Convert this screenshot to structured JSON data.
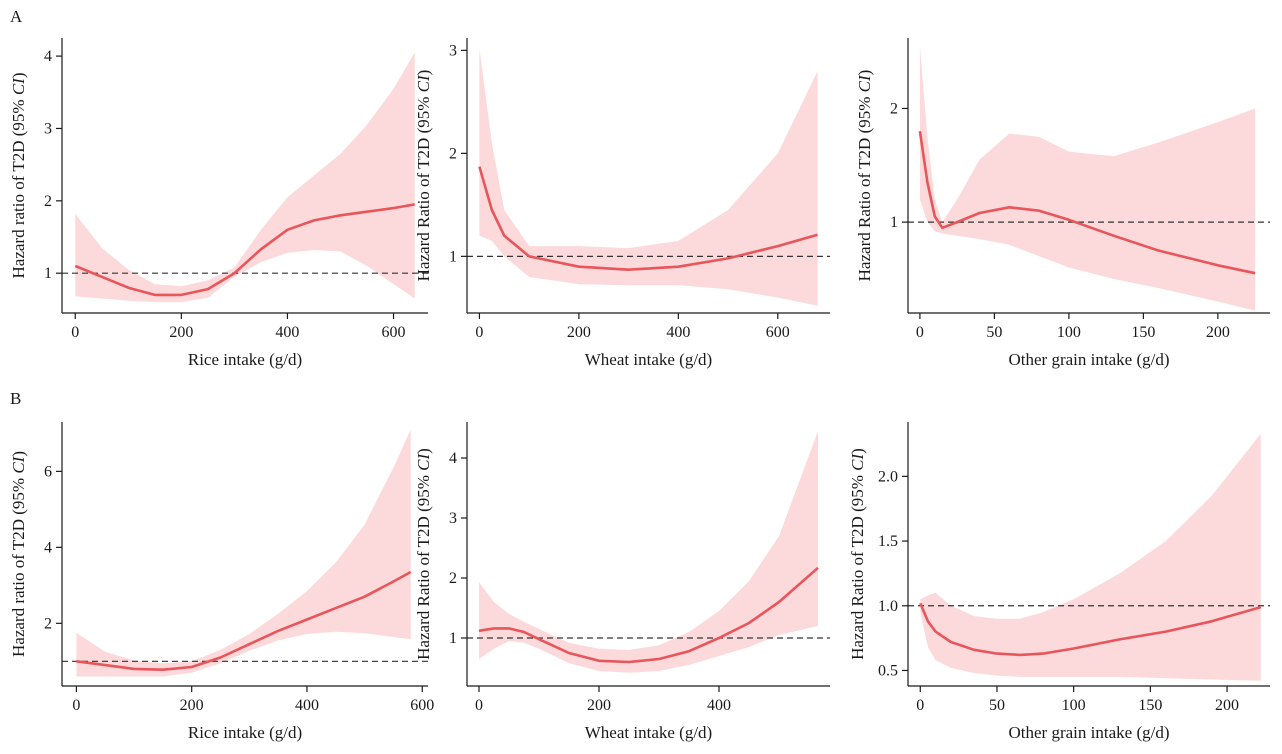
{
  "panel_labels": [
    "A",
    "B"
  ],
  "style": {
    "curve_color": "#e8555a",
    "band_color": "#fcdadb",
    "ref_line_color": "#333333"
  },
  "chart_data": [
    {
      "type": "line",
      "row": "A",
      "xlabel": "Rice intake (g/d)",
      "ylabel": "Hazard ratio of T2D (95%",
      "ylabel_italic": "CI",
      "ylabel_close": ")",
      "xlim": [
        -25,
        665
      ],
      "ylim": [
        0.45,
        4.25
      ],
      "xticks": [
        0,
        200,
        400,
        600
      ],
      "yticks": [
        1,
        2,
        3,
        4
      ],
      "reference_line": 1,
      "x": [
        0,
        50,
        100,
        150,
        200,
        250,
        300,
        350,
        400,
        450,
        500,
        550,
        600,
        640
      ],
      "y": [
        1.1,
        0.95,
        0.8,
        0.7,
        0.7,
        0.78,
        1.0,
        1.33,
        1.6,
        1.73,
        1.8,
        1.85,
        1.9,
        1.95
      ],
      "lower": [
        0.68,
        0.65,
        0.62,
        0.6,
        0.6,
        0.66,
        0.95,
        1.15,
        1.28,
        1.32,
        1.3,
        1.1,
        0.85,
        0.65
      ],
      "upper": [
        1.82,
        1.35,
        1.05,
        0.85,
        0.82,
        0.9,
        1.08,
        1.6,
        2.05,
        2.35,
        2.65,
        3.05,
        3.55,
        4.05
      ]
    },
    {
      "type": "line",
      "row": "A",
      "xlabel": "Wheat intake (g/d)",
      "ylabel": "Hazard Ratio of T2D (95%",
      "ylabel_italic": "CI",
      "ylabel_close": ")",
      "xlim": [
        -25,
        705
      ],
      "ylim": [
        0.45,
        3.12
      ],
      "xticks": [
        0,
        200,
        400,
        600
      ],
      "yticks": [
        1,
        2,
        3
      ],
      "reference_line": 1,
      "x": [
        0,
        25,
        50,
        100,
        200,
        300,
        400,
        500,
        600,
        680
      ],
      "y": [
        1.87,
        1.45,
        1.2,
        1.0,
        0.9,
        0.87,
        0.9,
        0.98,
        1.1,
        1.21
      ],
      "lower": [
        1.2,
        1.15,
        1.0,
        0.8,
        0.73,
        0.72,
        0.72,
        0.68,
        0.6,
        0.52
      ],
      "upper": [
        3.02,
        2.1,
        1.45,
        1.1,
        1.1,
        1.08,
        1.15,
        1.45,
        2.0,
        2.8
      ]
    },
    {
      "type": "line",
      "row": "A",
      "xlabel": "Other grain intake (g/d)",
      "ylabel": "Hazard Ratio of T2D (95%",
      "ylabel_italic": "CI",
      "ylabel_close": ")",
      "xlim": [
        -8,
        235
      ],
      "ylim": [
        0.2,
        2.62
      ],
      "xticks": [
        0,
        50,
        100,
        150,
        200
      ],
      "yticks": [
        1,
        2
      ],
      "reference_line": 1,
      "x": [
        0,
        5,
        10,
        15,
        25,
        40,
        60,
        80,
        100,
        130,
        160,
        200,
        225
      ],
      "y": [
        1.8,
        1.35,
        1.05,
        0.95,
        1.0,
        1.08,
        1.13,
        1.1,
        1.02,
        0.88,
        0.75,
        0.62,
        0.55
      ],
      "lower": [
        1.2,
        1.0,
        0.92,
        0.9,
        0.88,
        0.85,
        0.8,
        0.7,
        0.6,
        0.5,
        0.42,
        0.3,
        0.22
      ],
      "upper": [
        2.55,
        1.75,
        1.2,
        1.0,
        1.2,
        1.55,
        1.78,
        1.75,
        1.62,
        1.58,
        1.7,
        1.88,
        2.0
      ]
    },
    {
      "type": "line",
      "row": "B",
      "xlabel": "Rice intake (g/d)",
      "ylabel": "Hazard ratio of T2D (95%",
      "ylabel_italic": "CI",
      "ylabel_close": ")",
      "xlim": [
        -25,
        610
      ],
      "ylim": [
        0.35,
        7.3
      ],
      "xticks": [
        0,
        200,
        400,
        600
      ],
      "yticks": [
        2,
        4,
        6
      ],
      "reference_line": 1,
      "x": [
        0,
        50,
        100,
        150,
        200,
        250,
        300,
        350,
        400,
        450,
        500,
        550,
        580
      ],
      "y": [
        1.0,
        0.9,
        0.8,
        0.78,
        0.85,
        1.1,
        1.45,
        1.8,
        2.1,
        2.4,
        2.7,
        3.1,
        3.35
      ],
      "lower": [
        0.6,
        0.6,
        0.6,
        0.6,
        0.7,
        0.95,
        1.28,
        1.55,
        1.72,
        1.78,
        1.74,
        1.64,
        1.58
      ],
      "upper": [
        1.75,
        1.25,
        1.02,
        0.95,
        1.0,
        1.3,
        1.72,
        2.25,
        2.85,
        3.6,
        4.6,
        6.1,
        7.1
      ]
    },
    {
      "type": "line",
      "row": "B",
      "xlabel": "Wheat intake (g/d)",
      "ylabel": "Hazard Ratio of T2D (95%",
      "ylabel_italic": "CI",
      "ylabel_close": ")",
      "xlim": [
        -20,
        585
      ],
      "ylim": [
        0.2,
        4.6
      ],
      "xticks": [
        0,
        200,
        400
      ],
      "yticks": [
        1,
        2,
        3,
        4
      ],
      "reference_line": 1,
      "x": [
        0,
        25,
        50,
        75,
        100,
        150,
        200,
        250,
        300,
        350,
        400,
        450,
        500,
        565
      ],
      "y": [
        1.12,
        1.16,
        1.16,
        1.1,
        0.98,
        0.75,
        0.62,
        0.6,
        0.65,
        0.78,
        1.0,
        1.25,
        1.6,
        2.17
      ],
      "lower": [
        0.65,
        0.82,
        0.95,
        0.92,
        0.82,
        0.58,
        0.45,
        0.42,
        0.45,
        0.55,
        0.7,
        0.85,
        1.05,
        1.2
      ],
      "upper": [
        1.93,
        1.6,
        1.4,
        1.27,
        1.15,
        0.92,
        0.82,
        0.8,
        0.88,
        1.1,
        1.45,
        1.95,
        2.7,
        4.45
      ]
    },
    {
      "type": "line",
      "row": "B",
      "xlabel": "Other grain intake (g/d)",
      "ylabel": "Hazard Ratio of T2D (95%",
      "ylabel_italic": "CI",
      "ylabel_close": ")",
      "xlim": [
        -8,
        228
      ],
      "ylim": [
        0.38,
        2.42
      ],
      "xticks": [
        0,
        50,
        100,
        150,
        200
      ],
      "yticks": [
        0.5,
        1.0,
        1.5,
        2.0
      ],
      "ytick_labels": [
        "0.5",
        "1.0",
        "1.5",
        "2.0"
      ],
      "reference_line": 1,
      "x": [
        0,
        5,
        10,
        20,
        35,
        50,
        65,
        80,
        100,
        130,
        160,
        190,
        222
      ],
      "y": [
        1.02,
        0.88,
        0.8,
        0.72,
        0.66,
        0.63,
        0.62,
        0.63,
        0.67,
        0.74,
        0.8,
        0.88,
        0.99
      ],
      "lower": [
        0.95,
        0.68,
        0.58,
        0.52,
        0.48,
        0.46,
        0.45,
        0.45,
        0.45,
        0.45,
        0.44,
        0.43,
        0.42
      ],
      "upper": [
        1.05,
        1.08,
        1.1,
        1.0,
        0.92,
        0.9,
        0.9,
        0.95,
        1.05,
        1.25,
        1.5,
        1.85,
        2.33
      ]
    }
  ]
}
